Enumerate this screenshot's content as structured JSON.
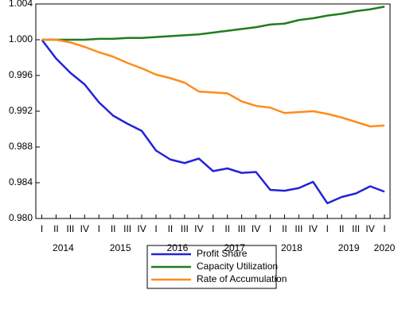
{
  "chart_data": {
    "type": "line",
    "categories": [
      "I",
      "II",
      "III",
      "IV",
      "I",
      "II",
      "III",
      "IV",
      "I",
      "II",
      "III",
      "IV",
      "I",
      "II",
      "III",
      "IV",
      "I",
      "II",
      "III",
      "IV",
      "I",
      "II",
      "III",
      "IV",
      "I"
    ],
    "year_labels": [
      "2014",
      "2015",
      "2016",
      "2017",
      "2018",
      "2019",
      "2020"
    ],
    "series": [
      {
        "name": "Profit Share",
        "color": "#2323d8",
        "values": [
          1.0,
          0.9979,
          0.9963,
          0.995,
          0.993,
          0.9915,
          0.9906,
          0.9898,
          0.9876,
          0.9866,
          0.9862,
          0.9867,
          0.9853,
          0.9856,
          0.9851,
          0.9852,
          0.9832,
          0.9831,
          0.9834,
          0.9841,
          0.9817,
          0.9824,
          0.9828,
          0.9836,
          0.983
        ]
      },
      {
        "name": "Capacity Utilization",
        "color": "#1e7d1e",
        "values": [
          1.0,
          1.0,
          1.0,
          1.0,
          1.0001,
          1.0001,
          1.0002,
          1.0002,
          1.0003,
          1.0004,
          1.0005,
          1.0006,
          1.0008,
          1.001,
          1.0012,
          1.0014,
          1.0017,
          1.0018,
          1.0022,
          1.0024,
          1.0027,
          1.0029,
          1.0032,
          1.0034,
          1.0037
        ]
      },
      {
        "name": "Rate of Accumulation",
        "color": "#ff8c1a",
        "values": [
          1.0,
          1.0,
          0.9997,
          0.9992,
          0.9986,
          0.9981,
          0.9974,
          0.9968,
          0.9961,
          0.9957,
          0.9952,
          0.9942,
          0.9941,
          0.994,
          0.9931,
          0.9926,
          0.9924,
          0.9918,
          0.9919,
          0.992,
          0.9917,
          0.9913,
          0.9908,
          0.9903,
          0.9904
        ]
      }
    ],
    "ylim": [
      0.98,
      1.004
    ],
    "yticks": [
      {
        "value": 0.98,
        "label": "0.980"
      },
      {
        "value": 0.984,
        "label": "0.984"
      },
      {
        "value": 0.988,
        "label": "0.988"
      },
      {
        "value": 0.992,
        "label": "0.992"
      },
      {
        "value": 0.996,
        "label": "0.996"
      },
      {
        "value": 1.0,
        "label": "1.000"
      },
      {
        "value": 1.004,
        "label": "1.004"
      }
    ],
    "grid": false
  }
}
